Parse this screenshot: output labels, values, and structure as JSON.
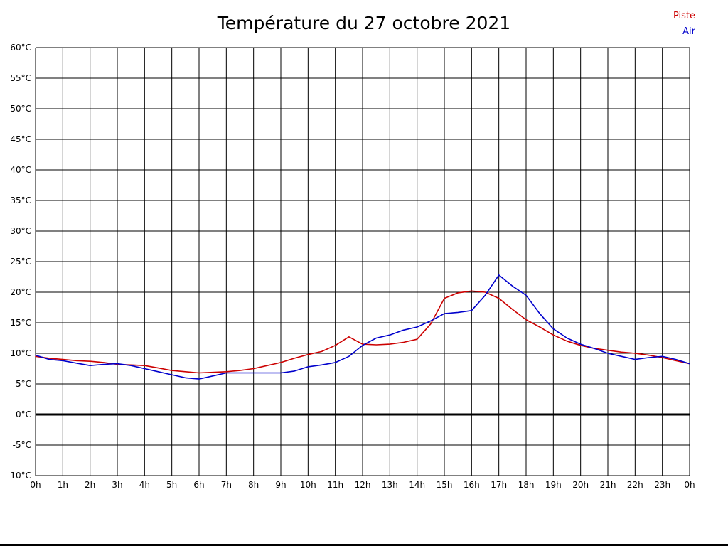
{
  "chart_data": {
    "type": "line",
    "title": "Température du 27 octobre 2021",
    "xlabel": "",
    "ylabel": "",
    "xlim": [
      0,
      24
    ],
    "ylim": [
      -10,
      60
    ],
    "x_step": 1,
    "y_step": 5,
    "grid": true,
    "grid_color": "#000000",
    "zero_line": {
      "value": 0,
      "color": "#000000",
      "width": 3
    },
    "x_ticks": [
      "0h",
      "1h",
      "2h",
      "3h",
      "4h",
      "5h",
      "6h",
      "7h",
      "8h",
      "9h",
      "10h",
      "11h",
      "12h",
      "13h",
      "14h",
      "15h",
      "16h",
      "17h",
      "18h",
      "19h",
      "20h",
      "21h",
      "22h",
      "23h",
      "0h"
    ],
    "y_ticks": [
      "60°C",
      "55°C",
      "50°C",
      "45°C",
      "40°C",
      "35°C",
      "30°C",
      "25°C",
      "20°C",
      "15°C",
      "10°C",
      "5°C",
      "0°C",
      "-5°C",
      "-10°C"
    ],
    "legend": [
      {
        "label": "Piste",
        "color": "#cc0000"
      },
      {
        "label": "Air",
        "color": "#0000cc"
      }
    ],
    "legend_position": "top-right",
    "series": [
      {
        "name": "Piste",
        "color": "#cc0000",
        "points": [
          [
            0,
            9.5
          ],
          [
            0.5,
            9.2
          ],
          [
            1,
            9
          ],
          [
            1.5,
            8.8
          ],
          [
            2,
            8.7
          ],
          [
            2.5,
            8.5
          ],
          [
            3,
            8.2
          ],
          [
            3.5,
            8.1
          ],
          [
            4,
            8
          ],
          [
            4.5,
            7.6
          ],
          [
            5,
            7.2
          ],
          [
            5.5,
            7
          ],
          [
            6,
            6.8
          ],
          [
            6.5,
            6.9
          ],
          [
            7,
            7
          ],
          [
            7.5,
            7.2
          ],
          [
            8,
            7.5
          ],
          [
            8.5,
            8
          ],
          [
            9,
            8.5
          ],
          [
            9.5,
            9.2
          ],
          [
            10,
            9.8
          ],
          [
            10.5,
            10.3
          ],
          [
            11,
            11.3
          ],
          [
            11.5,
            12.7
          ],
          [
            12,
            11.5
          ],
          [
            12.5,
            11.4
          ],
          [
            13,
            11.5
          ],
          [
            13.5,
            11.8
          ],
          [
            14,
            12.3
          ],
          [
            14.5,
            14.8
          ],
          [
            15,
            19
          ],
          [
            15.5,
            19.9
          ],
          [
            16,
            20.2
          ],
          [
            16.5,
            20
          ],
          [
            17,
            19
          ],
          [
            17.5,
            17.2
          ],
          [
            18,
            15.5
          ],
          [
            18.5,
            14.3
          ],
          [
            19,
            13
          ],
          [
            19.5,
            12
          ],
          [
            20,
            11.3
          ],
          [
            20.5,
            10.8
          ],
          [
            21,
            10.5
          ],
          [
            21.5,
            10.2
          ],
          [
            22,
            10
          ],
          [
            22.5,
            9.7
          ],
          [
            23,
            9.3
          ],
          [
            23.5,
            8.8
          ],
          [
            24,
            8.3
          ]
        ]
      },
      {
        "name": "Air",
        "color": "#0000cc",
        "points": [
          [
            0,
            9.7
          ],
          [
            0.5,
            9
          ],
          [
            1,
            8.8
          ],
          [
            1.5,
            8.4
          ],
          [
            2,
            8
          ],
          [
            2.5,
            8.2
          ],
          [
            3,
            8.3
          ],
          [
            3.5,
            8
          ],
          [
            4,
            7.5
          ],
          [
            4.5,
            7
          ],
          [
            5,
            6.5
          ],
          [
            5.5,
            6
          ],
          [
            6,
            5.8
          ],
          [
            6.5,
            6.3
          ],
          [
            7,
            6.8
          ],
          [
            7.5,
            6.8
          ],
          [
            8,
            6.8
          ],
          [
            8.5,
            6.8
          ],
          [
            9,
            6.8
          ],
          [
            9.5,
            7.1
          ],
          [
            10,
            7.8
          ],
          [
            10.5,
            8.1
          ],
          [
            11,
            8.5
          ],
          [
            11.5,
            9.5
          ],
          [
            12,
            11.3
          ],
          [
            12.5,
            12.5
          ],
          [
            13,
            13
          ],
          [
            13.5,
            13.8
          ],
          [
            14,
            14.3
          ],
          [
            14.5,
            15.3
          ],
          [
            15,
            16.5
          ],
          [
            15.5,
            16.7
          ],
          [
            16,
            17
          ],
          [
            16.5,
            19.5
          ],
          [
            17,
            22.8
          ],
          [
            17.5,
            21
          ],
          [
            18,
            19.5
          ],
          [
            18.5,
            16.5
          ],
          [
            19,
            14
          ],
          [
            19.5,
            12.5
          ],
          [
            20,
            11.5
          ],
          [
            20.5,
            10.8
          ],
          [
            21,
            10
          ],
          [
            21.5,
            9.5
          ],
          [
            22,
            9
          ],
          [
            22.5,
            9.3
          ],
          [
            23,
            9.5
          ],
          [
            23.5,
            9
          ],
          [
            24,
            8.3
          ]
        ]
      }
    ]
  }
}
